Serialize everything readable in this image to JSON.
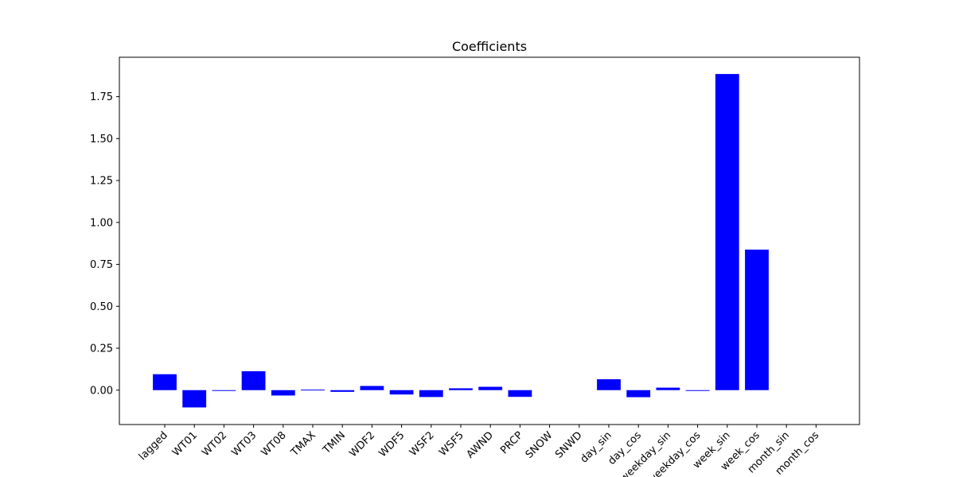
{
  "chart_data": {
    "type": "bar",
    "title": "Coefficients",
    "xlabel": "",
    "ylabel": "",
    "categories": [
      "lagged",
      "WT01",
      "WT02",
      "WT03",
      "WT08",
      "TMAX",
      "TMIN",
      "WDF2",
      "WDF5",
      "WSF2",
      "WSF5",
      "AWND",
      "PRCP",
      "SNOW",
      "SNWD",
      "day_sin",
      "day_cos",
      "weekday_sin",
      "weekday_cos",
      "week_sin",
      "week_cos",
      "month_sin",
      "month_cos"
    ],
    "values": [
      0.095,
      -0.103,
      -0.004,
      0.113,
      -0.032,
      0.003,
      -0.01,
      0.025,
      -0.026,
      -0.041,
      0.011,
      0.02,
      -0.04,
      0.0,
      0.0,
      0.065,
      -0.042,
      0.015,
      -0.004,
      1.885,
      0.838,
      0.0,
      0.0
    ],
    "ylim": [
      -0.205,
      1.985
    ],
    "yticks": [
      0.0,
      0.25,
      0.5,
      0.75,
      1.0,
      1.25,
      1.5,
      1.75
    ],
    "ytick_labels": [
      "0.00",
      "0.25",
      "0.50",
      "0.75",
      "1.00",
      "1.25",
      "1.50",
      "1.75"
    ],
    "bar_color": "#0000ff",
    "grid": false,
    "legend": "none"
  }
}
